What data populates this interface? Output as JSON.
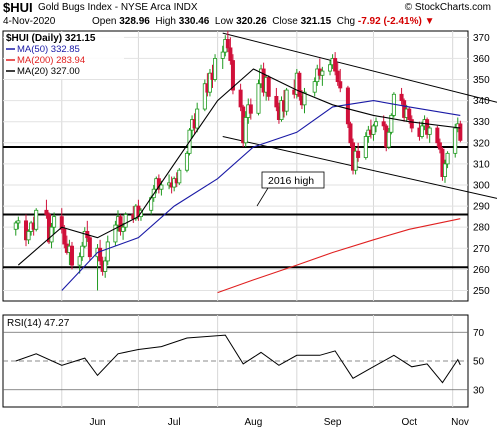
{
  "header": {
    "symbol": "$HUI",
    "name": "Gold Bugs Index - NYSE Arca",
    "exchange": "INDX",
    "site": "© StockCharts.com",
    "date": "4-Nov-2020",
    "open_label": "Open",
    "open": "328.96",
    "high_label": "High",
    "high": "330.46",
    "low_label": "Low",
    "low": "320.26",
    "close_label": "Close",
    "close": "321.15",
    "chg_label": "Chg",
    "chg": "-7.92 (-2.41%)",
    "chg_arrow": "▼"
  },
  "legend": {
    "main": "$HUI (Daily) 321.15",
    "ma50": "MA(50) 332.85",
    "ma200": "MA(200) 283.94",
    "ma20": "MA(20) 327.00"
  },
  "colors": {
    "up": "#1f9a1f",
    "down": "#d0103a",
    "ma50": "#1a1aa6",
    "ma200": "#e02020",
    "ma20": "#000000",
    "rsi": "#000000"
  },
  "annotation": {
    "text": "2016 high"
  },
  "rsi_legend": "RSI(14) 47.27",
  "chart_data": [
    {
      "type": "candlestick",
      "title": "$HUI (Daily) 321.15",
      "x_axis_labels": [
        "Jun",
        "Jul",
        "Aug",
        "Sep",
        "Oct",
        "Nov"
      ],
      "y_ticks": [
        250,
        260,
        270,
        280,
        290,
        300,
        310,
        320,
        330,
        340,
        350,
        360,
        370
      ],
      "ylim": [
        245,
        373
      ],
      "grid": true,
      "horizontal_lines": [
        318,
        286,
        261
      ],
      "trendlines": [
        {
          "from": [
            "2020-08-03",
            372
          ],
          "to": [
            "2020-11-06",
            343
          ]
        },
        {
          "from": [
            "2020-08-03",
            323
          ],
          "to": [
            "2020-11-06",
            297
          ]
        }
      ],
      "moving_averages": {
        "ma20": {
          "x": [
            "2020-05-15",
            "2020-06-01",
            "2020-06-15",
            "2020-07-01",
            "2020-07-15",
            "2020-08-01",
            "2020-08-15",
            "2020-09-01",
            "2020-09-15",
            "2020-10-01",
            "2020-10-15",
            "2020-11-04"
          ],
          "y": [
            262,
            280,
            275,
            285,
            310,
            340,
            355,
            345,
            338,
            333,
            330,
            327
          ]
        },
        "ma50": {
          "x": [
            "2020-06-01",
            "2020-06-15",
            "2020-07-01",
            "2020-07-15",
            "2020-08-01",
            "2020-08-15",
            "2020-09-01",
            "2020-09-15",
            "2020-10-01",
            "2020-10-15",
            "2020-11-04"
          ],
          "y": [
            250,
            268,
            275,
            290,
            303,
            318,
            325,
            337,
            340,
            337,
            333
          ]
        },
        "ma200": {
          "x": [
            "2020-08-01",
            "2020-08-15",
            "2020-09-01",
            "2020-09-15",
            "2020-10-01",
            "2020-10-15",
            "2020-11-04"
          ],
          "y": [
            249,
            255,
            262,
            268,
            274,
            279,
            284
          ]
        }
      },
      "ohlc": [
        [
          "2020-05-14",
          279,
          283,
          276,
          282
        ],
        [
          "2020-05-15",
          282,
          285,
          279,
          283
        ],
        [
          "2020-05-18",
          283,
          286,
          271,
          274
        ],
        [
          "2020-05-19",
          274,
          279,
          272,
          278
        ],
        [
          "2020-05-20",
          278,
          283,
          276,
          282
        ],
        [
          "2020-05-21",
          282,
          285,
          276,
          279
        ],
        [
          "2020-05-22",
          279,
          289,
          278,
          288
        ],
        [
          "2020-05-26",
          288,
          293,
          284,
          286
        ],
        [
          "2020-05-27",
          286,
          287,
          272,
          273
        ],
        [
          "2020-05-28",
          273,
          282,
          270,
          280
        ],
        [
          "2020-05-29",
          280,
          287,
          277,
          285
        ],
        [
          "2020-06-01",
          285,
          289,
          277,
          279
        ],
        [
          "2020-06-02",
          279,
          281,
          270,
          272
        ],
        [
          "2020-06-03",
          272,
          276,
          267,
          268
        ],
        [
          "2020-06-04",
          268,
          274,
          262,
          271
        ],
        [
          "2020-06-05",
          271,
          273,
          260,
          262
        ],
        [
          "2020-06-08",
          262,
          268,
          258,
          266
        ],
        [
          "2020-06-09",
          266,
          273,
          264,
          271
        ],
        [
          "2020-06-10",
          271,
          280,
          270,
          278
        ],
        [
          "2020-06-11",
          278,
          283,
          273,
          275
        ],
        [
          "2020-06-12",
          275,
          276,
          264,
          266
        ],
        [
          "2020-06-15",
          266,
          272,
          250,
          270
        ],
        [
          "2020-06-16",
          270,
          274,
          262,
          264
        ],
        [
          "2020-06-17",
          264,
          266,
          257,
          259
        ],
        [
          "2020-06-18",
          259,
          266,
          256,
          264
        ],
        [
          "2020-06-19",
          264,
          276,
          262,
          273
        ],
        [
          "2020-06-22",
          273,
          283,
          271,
          281
        ],
        [
          "2020-06-23",
          281,
          288,
          278,
          285
        ],
        [
          "2020-06-24",
          285,
          286,
          276,
          278
        ],
        [
          "2020-06-25",
          278,
          282,
          274,
          280
        ],
        [
          "2020-06-26",
          280,
          287,
          278,
          286
        ],
        [
          "2020-06-29",
          286,
          290,
          282,
          284
        ],
        [
          "2020-06-30",
          284,
          291,
          283,
          290
        ],
        [
          "2020-07-01",
          290,
          293,
          283,
          285
        ],
        [
          "2020-07-02",
          285,
          289,
          283,
          288
        ],
        [
          "2020-07-06",
          288,
          295,
          286,
          294
        ],
        [
          "2020-07-07",
          294,
          300,
          292,
          298
        ],
        [
          "2020-07-08",
          298,
          304,
          296,
          303
        ],
        [
          "2020-07-09",
          303,
          305,
          296,
          298
        ],
        [
          "2020-07-10",
          298,
          302,
          295,
          300
        ],
        [
          "2020-07-13",
          300,
          305,
          298,
          301
        ],
        [
          "2020-07-14",
          301,
          304,
          296,
          299
        ],
        [
          "2020-07-15",
          299,
          304,
          297,
          303
        ],
        [
          "2020-07-16",
          303,
          306,
          299,
          301
        ],
        [
          "2020-07-17",
          301,
          308,
          300,
          307
        ],
        [
          "2020-07-20",
          307,
          316,
          306,
          315
        ],
        [
          "2020-07-21",
          315,
          327,
          314,
          326
        ],
        [
          "2020-07-22",
          326,
          333,
          322,
          331
        ],
        [
          "2020-07-23",
          331,
          334,
          324,
          327
        ],
        [
          "2020-07-24",
          327,
          339,
          325,
          336
        ],
        [
          "2020-07-27",
          336,
          350,
          335,
          348
        ],
        [
          "2020-07-28",
          348,
          353,
          342,
          344
        ],
        [
          "2020-07-29",
          344,
          355,
          342,
          353
        ],
        [
          "2020-07-30",
          353,
          357,
          346,
          350
        ],
        [
          "2020-07-31",
          350,
          362,
          349,
          360
        ],
        [
          "2020-08-03",
          360,
          366,
          355,
          363
        ],
        [
          "2020-08-04",
          363,
          371,
          361,
          369
        ],
        [
          "2020-08-05",
          369,
          373,
          363,
          365
        ],
        [
          "2020-08-06",
          365,
          370,
          357,
          359
        ],
        [
          "2020-08-07",
          359,
          362,
          343,
          345
        ],
        [
          "2020-08-10",
          345,
          348,
          335,
          337
        ],
        [
          "2020-08-11",
          337,
          338,
          318,
          320
        ],
        [
          "2020-08-12",
          320,
          335,
          318,
          332
        ],
        [
          "2020-08-13",
          332,
          341,
          329,
          338
        ],
        [
          "2020-08-14",
          338,
          341,
          331,
          334
        ],
        [
          "2020-08-17",
          334,
          350,
          333,
          348
        ],
        [
          "2020-08-18",
          348,
          357,
          346,
          355
        ],
        [
          "2020-08-19",
          355,
          358,
          342,
          344
        ],
        [
          "2020-08-20",
          344,
          352,
          340,
          351
        ],
        [
          "2020-08-21",
          351,
          352,
          340,
          342
        ],
        [
          "2020-08-24",
          342,
          346,
          335,
          337
        ],
        [
          "2020-08-25",
          337,
          339,
          329,
          331
        ],
        [
          "2020-08-26",
          331,
          342,
          330,
          340
        ],
        [
          "2020-08-27",
          340,
          345,
          332,
          335
        ],
        [
          "2020-08-28",
          335,
          346,
          333,
          345
        ],
        [
          "2020-08-31",
          345,
          350,
          341,
          343
        ],
        [
          "2020-09-01",
          343,
          355,
          341,
          353
        ],
        [
          "2020-09-02",
          353,
          354,
          340,
          342
        ],
        [
          "2020-09-03",
          342,
          345,
          336,
          338
        ],
        [
          "2020-09-04",
          338,
          346,
          334,
          344
        ],
        [
          "2020-09-08",
          344,
          351,
          342,
          349
        ],
        [
          "2020-09-09",
          349,
          357,
          347,
          355
        ],
        [
          "2020-09-10",
          355,
          360,
          350,
          352
        ],
        [
          "2020-09-11",
          352,
          356,
          347,
          354
        ],
        [
          "2020-09-14",
          354,
          359,
          352,
          357
        ],
        [
          "2020-09-15",
          357,
          362,
          355,
          360
        ],
        [
          "2020-09-16",
          360,
          363,
          352,
          354
        ],
        [
          "2020-09-17",
          354,
          358,
          347,
          349
        ],
        [
          "2020-09-18",
          349,
          355,
          344,
          346
        ],
        [
          "2020-09-21",
          346,
          347,
          327,
          329
        ],
        [
          "2020-09-22",
          329,
          330,
          318,
          320
        ],
        [
          "2020-09-23",
          320,
          322,
          305,
          307
        ],
        [
          "2020-09-24",
          307,
          318,
          305,
          316
        ],
        [
          "2020-09-25",
          316,
          320,
          311,
          313
        ],
        [
          "2020-09-28",
          313,
          325,
          312,
          323
        ],
        [
          "2020-09-29",
          323,
          328,
          320,
          326
        ],
        [
          "2020-09-30",
          326,
          331,
          322,
          324
        ],
        [
          "2020-10-01",
          324,
          329,
          321,
          328
        ],
        [
          "2020-10-02",
          328,
          332,
          325,
          330
        ],
        [
          "2020-10-05",
          330,
          333,
          326,
          328
        ],
        [
          "2020-10-06",
          328,
          329,
          316,
          318
        ],
        [
          "2020-10-07",
          318,
          327,
          317,
          325
        ],
        [
          "2020-10-08",
          325,
          334,
          324,
          333
        ],
        [
          "2020-10-09",
          333,
          344,
          332,
          343
        ],
        [
          "2020-10-12",
          343,
          346,
          338,
          340
        ],
        [
          "2020-10-13",
          340,
          341,
          330,
          332
        ],
        [
          "2020-10-14",
          332,
          338,
          330,
          336
        ],
        [
          "2020-10-15",
          336,
          337,
          329,
          331
        ],
        [
          "2020-10-16",
          331,
          333,
          325,
          327
        ],
        [
          "2020-10-19",
          327,
          330,
          321,
          323
        ],
        [
          "2020-10-20",
          323,
          330,
          322,
          328
        ],
        [
          "2020-10-21",
          328,
          333,
          326,
          331
        ],
        [
          "2020-10-22",
          331,
          332,
          322,
          324
        ],
        [
          "2020-10-23",
          324,
          328,
          320,
          327
        ],
        [
          "2020-10-26",
          327,
          328,
          318,
          320
        ],
        [
          "2020-10-27",
          320,
          322,
          315,
          317
        ],
        [
          "2020-10-28",
          317,
          318,
          302,
          304
        ],
        [
          "2020-10-29",
          304,
          312,
          301,
          310
        ],
        [
          "2020-10-30",
          310,
          316,
          308,
          315
        ],
        [
          "2020-11-02",
          315,
          329,
          313,
          327
        ],
        [
          "2020-11-03",
          327,
          332,
          325,
          329
        ],
        [
          "2020-11-04",
          328.96,
          330.46,
          320.26,
          321.15
        ]
      ]
    },
    {
      "type": "line",
      "title": "RSI(14) 47.27",
      "y_ticks": [
        30,
        50,
        70
      ],
      "ylim": [
        18,
        82
      ],
      "reference_lines": [
        30,
        50,
        70
      ],
      "x": [
        "2020-05-14",
        "2020-05-22",
        "2020-06-01",
        "2020-06-10",
        "2020-06-15",
        "2020-06-23",
        "2020-07-01",
        "2020-07-10",
        "2020-07-20",
        "2020-08-04",
        "2020-08-11",
        "2020-08-18",
        "2020-08-25",
        "2020-09-01",
        "2020-09-10",
        "2020-09-16",
        "2020-09-23",
        "2020-09-29",
        "2020-10-09",
        "2020-10-16",
        "2020-10-22",
        "2020-10-28",
        "2020-11-03",
        "2020-11-04"
      ],
      "y": [
        50,
        55,
        47,
        52,
        40,
        55,
        58,
        60,
        66,
        68,
        48,
        56,
        47,
        54,
        54,
        57,
        38,
        44,
        54,
        46,
        48,
        35,
        51,
        47.27
      ]
    }
  ]
}
